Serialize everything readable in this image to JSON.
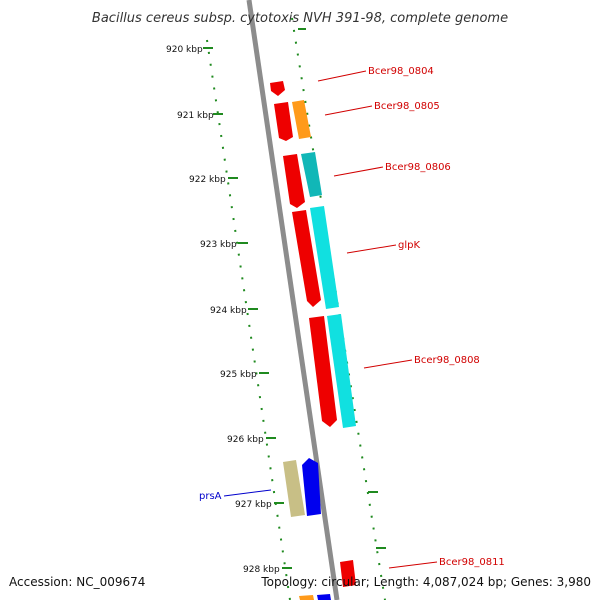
{
  "title": "Bacillus cereus subsp. cytotoxis NVH 391-98, complete genome",
  "footer": {
    "accession": "Accession: NC_009674",
    "topology": "Topology: circular; Length: 4,087,024 bp; Genes: 3,980"
  },
  "colors": {
    "backbone": "#8c8c8c",
    "tick": "#1f8a1f",
    "cds_red": "#ee0000",
    "cds_cyan": "#11e0e0",
    "cds_orange": "#ff9a1a",
    "cds_olive": "#c8bf86",
    "cds_blue": "#0000ee",
    "label_red": "#d10000",
    "label_blue": "#0000cc"
  },
  "ticks": [
    {
      "label": "920 kbp"
    },
    {
      "label": "921 kbp"
    },
    {
      "label": "922 kbp"
    },
    {
      "label": "923 kbp"
    },
    {
      "label": "924 kbp"
    },
    {
      "label": "925 kbp"
    },
    {
      "label": "926 kbp"
    },
    {
      "label": "927 kbp"
    },
    {
      "label": "928 kbp"
    }
  ],
  "genes": [
    {
      "label": "Bcer98_0804",
      "color": "label_red"
    },
    {
      "label": "Bcer98_0805",
      "color": "label_red"
    },
    {
      "label": "Bcer98_0806",
      "color": "label_red"
    },
    {
      "label": "glpK",
      "color": "label_red"
    },
    {
      "label": "Bcer98_0808",
      "color": "label_red"
    },
    {
      "label": "prsA",
      "color": "label_blue"
    },
    {
      "label": "Bcer98_0811",
      "color": "label_red"
    }
  ]
}
